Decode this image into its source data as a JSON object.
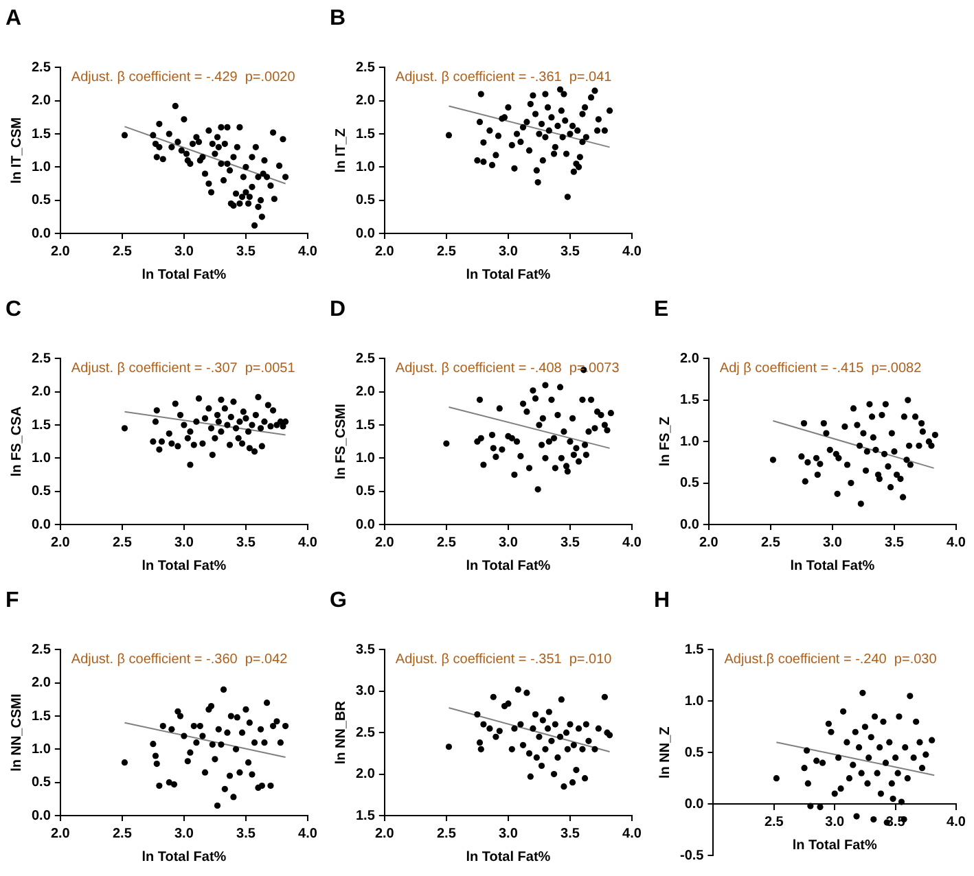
{
  "chart_data": [
    {
      "type": "scatter",
      "title": "A",
      "xlabel": "ln Total Fat%",
      "ylabel": "ln IT_CSM",
      "annotations": [
        "Adjust. β coefficient = -.429  p=.0020"
      ],
      "xlim": [
        2,
        4
      ],
      "xticks": [
        {
          "value": 2,
          "label": "2.0"
        },
        {
          "value": 2.5,
          "label": "2.5"
        },
        {
          "value": 3,
          "label": "3.0"
        },
        {
          "value": 3.5,
          "label": "3.5"
        },
        {
          "value": 4,
          "label": "4.0"
        }
      ],
      "ylim": [
        0,
        2.5
      ],
      "yticks": [
        {
          "value": 0,
          "label": "0.0"
        },
        0.5,
        {
          "value": 1,
          "label": "1.0"
        },
        1.5,
        {
          "value": 2,
          "label": "2.0"
        },
        2.5
      ],
      "grid": false,
      "legend": false,
      "marker": "circle",
      "series": [
        {
          "type": "scatter",
          "color": "#000000",
          "x": [
            2.52,
            2.75,
            2.77,
            2.78,
            2.8,
            2.8,
            2.83,
            2.88,
            2.9,
            2.93,
            2.95,
            2.98,
            3.0,
            3.02,
            3.03,
            3.05,
            3.07,
            3.1,
            3.12,
            3.13,
            3.15,
            3.17,
            3.2,
            3.2,
            3.22,
            3.23,
            3.25,
            3.27,
            3.28,
            3.3,
            3.3,
            3.32,
            3.33,
            3.35,
            3.35,
            3.37,
            3.38,
            3.4,
            3.4,
            3.42,
            3.43,
            3.45,
            3.45,
            3.47,
            3.48,
            3.5,
            3.5,
            3.52,
            3.53,
            3.55,
            3.55,
            3.57,
            3.58,
            3.6,
            3.6,
            3.62,
            3.63,
            3.64,
            3.65,
            3.67,
            3.7,
            3.72,
            3.73,
            3.77,
            3.8,
            3.82
          ],
          "values": [
            1.48,
            1.48,
            1.35,
            1.15,
            1.3,
            1.65,
            1.12,
            1.5,
            1.3,
            1.92,
            1.38,
            1.25,
            1.72,
            1.2,
            1.1,
            1.05,
            1.35,
            1.45,
            1.38,
            1.1,
            1.15,
            0.9,
            0.75,
            1.55,
            0.62,
            1.35,
            1.2,
            1.45,
            1.3,
            1.6,
            1.05,
            0.8,
            1.35,
            1.6,
            1.05,
            0.95,
            0.45,
            0.42,
            1.15,
            0.6,
            1.3,
            1.6,
            0.45,
            0.55,
            0.85,
            1.0,
            0.62,
            0.45,
            0.55,
            1.15,
            0.7,
            0.12,
            1.3,
            0.85,
            0.4,
            0.5,
            0.25,
            0.9,
            1.1,
            0.85,
            0.72,
            1.52,
            0.52,
            1.02,
            1.42,
            0.85
          ]
        },
        {
          "type": "line",
          "color": "#808080",
          "marker": "none",
          "x": [
            2.52,
            3.82
          ],
          "values": [
            1.61,
            0.75
          ]
        }
      ]
    },
    {
      "type": "scatter",
      "title": "B",
      "xlabel": "ln Total Fat%",
      "ylabel": "ln IT_Z",
      "annotations": [
        "Adjust. β coefficient = -.361  p=.041"
      ],
      "xlim": [
        2,
        4
      ],
      "xticks": [
        {
          "value": 2,
          "label": "2.0"
        },
        {
          "value": 2.5,
          "label": "2.5"
        },
        {
          "value": 3,
          "label": "3.0"
        },
        {
          "value": 3.5,
          "label": "3.5"
        },
        {
          "value": 4,
          "label": "4.0"
        }
      ],
      "ylim": [
        0,
        2.5
      ],
      "yticks": [
        {
          "value": 0,
          "label": "0.0"
        },
        0.5,
        {
          "value": 1,
          "label": "1.0"
        },
        1.5,
        {
          "value": 2,
          "label": "2.0"
        },
        2.5
      ],
      "grid": false,
      "legend": false,
      "marker": "circle",
      "series": [
        {
          "type": "scatter",
          "color": "#000000",
          "x": [
            2.52,
            2.75,
            2.77,
            2.78,
            2.8,
            2.8,
            2.85,
            2.87,
            2.9,
            2.92,
            2.95,
            2.97,
            3.0,
            3.03,
            3.05,
            3.07,
            3.1,
            3.12,
            3.15,
            3.17,
            3.18,
            3.2,
            3.22,
            3.23,
            3.24,
            3.25,
            3.27,
            3.28,
            3.3,
            3.3,
            3.32,
            3.33,
            3.35,
            3.37,
            3.38,
            3.4,
            3.42,
            3.43,
            3.44,
            3.45,
            3.46,
            3.47,
            3.48,
            3.5,
            3.52,
            3.53,
            3.55,
            3.56,
            3.57,
            3.58,
            3.6,
            3.6,
            3.62,
            3.63,
            3.67,
            3.7,
            3.72,
            3.73,
            3.78,
            3.82
          ],
          "values": [
            1.48,
            1.1,
            1.68,
            2.1,
            1.37,
            1.08,
            1.55,
            1.03,
            1.18,
            1.47,
            1.73,
            1.75,
            1.9,
            1.33,
            0.98,
            1.5,
            1.38,
            1.6,
            1.68,
            1.25,
            1.95,
            2.08,
            1.8,
            0.95,
            0.77,
            1.5,
            1.65,
            1.1,
            2.1,
            1.45,
            1.9,
            1.55,
            1.75,
            1.2,
            1.3,
            1.62,
            2.17,
            1.85,
            1.45,
            2.1,
            1.7,
            1.2,
            0.55,
            1.5,
            1.62,
            0.93,
            1.05,
            1.55,
            1.0,
            1.15,
            1.8,
            1.38,
            1.9,
            1.45,
            2.05,
            2.15,
            1.55,
            1.72,
            1.55,
            1.85
          ]
        },
        {
          "type": "line",
          "color": "#808080",
          "marker": "none",
          "x": [
            2.52,
            3.82
          ],
          "values": [
            1.92,
            1.3
          ]
        }
      ]
    },
    {
      "type": "scatter",
      "title": "C",
      "xlabel": "ln Total Fat%",
      "ylabel": "ln FS_CSA",
      "annotations": [
        "Adjust. β coefficient = -.307  p=.0051"
      ],
      "xlim": [
        2,
        4
      ],
      "xticks": [
        {
          "value": 2,
          "label": "2.0"
        },
        {
          "value": 2.5,
          "label": "2.5"
        },
        {
          "value": 3,
          "label": "3.0"
        },
        {
          "value": 3.5,
          "label": "3.5"
        },
        {
          "value": 4,
          "label": "4.0"
        }
      ],
      "ylim": [
        0,
        2.5
      ],
      "yticks": [
        {
          "value": 0,
          "label": "0.0"
        },
        0.5,
        {
          "value": 1,
          "label": "1.0"
        },
        1.5,
        {
          "value": 2,
          "label": "2.0"
        },
        2.5
      ],
      "grid": false,
      "legend": false,
      "marker": "circle",
      "series": [
        {
          "type": "scatter",
          "color": "#000000",
          "x": [
            2.52,
            2.75,
            2.77,
            2.78,
            2.8,
            2.82,
            2.88,
            2.9,
            2.93,
            2.95,
            2.97,
            3.0,
            3.03,
            3.05,
            3.05,
            3.08,
            3.1,
            3.12,
            3.15,
            3.17,
            3.2,
            3.22,
            3.23,
            3.25,
            3.27,
            3.28,
            3.3,
            3.3,
            3.33,
            3.35,
            3.37,
            3.38,
            3.4,
            3.42,
            3.44,
            3.45,
            3.47,
            3.48,
            3.5,
            3.52,
            3.53,
            3.55,
            3.57,
            3.58,
            3.6,
            3.62,
            3.63,
            3.65,
            3.68,
            3.7,
            3.72,
            3.75,
            3.78,
            3.8,
            3.82
          ],
          "values": [
            1.45,
            1.25,
            1.55,
            1.72,
            1.13,
            1.25,
            1.37,
            1.22,
            1.82,
            1.18,
            1.65,
            1.5,
            1.3,
            0.9,
            1.4,
            1.2,
            1.55,
            1.9,
            1.22,
            1.6,
            1.75,
            1.45,
            1.05,
            1.3,
            1.65,
            1.55,
            1.88,
            1.4,
            1.75,
            1.5,
            1.2,
            1.62,
            1.85,
            1.45,
            1.3,
            1.55,
            1.22,
            1.7,
            1.6,
            1.4,
            1.15,
            1.5,
            1.1,
            1.65,
            1.92,
            1.45,
            1.18,
            1.55,
            1.8,
            1.48,
            1.72,
            1.5,
            1.55,
            1.48,
            1.55
          ]
        },
        {
          "type": "line",
          "color": "#808080",
          "marker": "none",
          "x": [
            2.52,
            3.82
          ],
          "values": [
            1.7,
            1.35
          ]
        }
      ]
    },
    {
      "type": "scatter",
      "title": "D",
      "xlabel": "ln Total Fat%",
      "ylabel": "ln FS_CSMI",
      "annotations": [
        "Adjust. β coefficient = -.408  p=.0073"
      ],
      "xlim": [
        2,
        4
      ],
      "xticks": [
        {
          "value": 2,
          "label": "2.0"
        },
        {
          "value": 2.5,
          "label": "2.5"
        },
        {
          "value": 3,
          "label": "3.0"
        },
        {
          "value": 3.5,
          "label": "3.5"
        },
        {
          "value": 4,
          "label": "4.0"
        }
      ],
      "ylim": [
        0,
        2.5
      ],
      "yticks": [
        {
          "value": 0,
          "label": "0.0"
        },
        0.5,
        {
          "value": 1,
          "label": "1.0"
        },
        1.5,
        {
          "value": 2,
          "label": "2.0"
        },
        2.5
      ],
      "grid": false,
      "legend": false,
      "marker": "circle",
      "series": [
        {
          "type": "scatter",
          "color": "#000000",
          "x": [
            2.5,
            2.75,
            2.77,
            2.78,
            2.8,
            2.87,
            2.88,
            2.9,
            2.93,
            2.95,
            3.0,
            3.03,
            3.05,
            3.07,
            3.1,
            3.12,
            3.15,
            3.17,
            3.2,
            3.22,
            3.24,
            3.25,
            3.27,
            3.28,
            3.3,
            3.3,
            3.33,
            3.35,
            3.37,
            3.38,
            3.4,
            3.42,
            3.43,
            3.45,
            3.47,
            3.48,
            3.5,
            3.52,
            3.53,
            3.55,
            3.57,
            3.6,
            3.61,
            3.62,
            3.63,
            3.65,
            3.67,
            3.7,
            3.72,
            3.75,
            3.78,
            3.8,
            3.83
          ],
          "values": [
            1.22,
            1.25,
            1.88,
            1.3,
            0.9,
            1.35,
            1.15,
            1.02,
            1.75,
            1.13,
            1.33,
            1.3,
            0.75,
            1.25,
            1.03,
            1.82,
            1.7,
            0.85,
            2.02,
            1.9,
            0.53,
            1.5,
            1.2,
            1.6,
            2.1,
            1.0,
            1.25,
            1.88,
            1.3,
            0.85,
            1.65,
            2.07,
            1.0,
            1.4,
            0.88,
            0.8,
            1.25,
            1.6,
            1.05,
            1.15,
            0.95,
            1.88,
            2.33,
            1.2,
            1.05,
            1.4,
            1.88,
            1.45,
            1.7,
            1.65,
            1.5,
            1.42,
            1.68
          ]
        },
        {
          "type": "line",
          "color": "#808080",
          "marker": "none",
          "x": [
            2.52,
            3.82
          ],
          "values": [
            1.77,
            1.15
          ]
        }
      ]
    },
    {
      "type": "scatter",
      "title": "E",
      "xlabel": "ln Total Fat%",
      "ylabel": "ln FS_Z",
      "annotations": [
        "Adj β coefficient = -.415  p=.0082"
      ],
      "xlim": [
        2,
        4
      ],
      "xticks": [
        {
          "value": 2,
          "label": "2.0"
        },
        {
          "value": 2.5,
          "label": "2.5"
        },
        {
          "value": 3,
          "label": "3.0"
        },
        {
          "value": 3.5,
          "label": "3.5"
        },
        {
          "value": 4,
          "label": "4.0"
        }
      ],
      "ylim": [
        0,
        2
      ],
      "yticks": [
        {
          "value": 0,
          "label": "0.0"
        },
        0.5,
        {
          "value": 1,
          "label": "1.0"
        },
        1.5,
        {
          "value": 2,
          "label": "2.0"
        }
      ],
      "grid": false,
      "legend": false,
      "marker": "circle",
      "series": [
        {
          "type": "scatter",
          "color": "#000000",
          "x": [
            2.52,
            2.75,
            2.77,
            2.78,
            2.8,
            2.87,
            2.88,
            2.9,
            2.93,
            2.95,
            2.98,
            3.03,
            3.04,
            3.05,
            3.1,
            3.12,
            3.15,
            3.17,
            3.2,
            3.22,
            3.23,
            3.25,
            3.27,
            3.28,
            3.3,
            3.32,
            3.33,
            3.35,
            3.37,
            3.38,
            3.4,
            3.42,
            3.43,
            3.45,
            3.47,
            3.48,
            3.5,
            3.52,
            3.55,
            3.57,
            3.58,
            3.6,
            3.61,
            3.62,
            3.63,
            3.67,
            3.7,
            3.72,
            3.73,
            3.78,
            3.8,
            3.83
          ],
          "values": [
            0.78,
            0.82,
            1.22,
            0.52,
            0.75,
            0.8,
            0.6,
            0.73,
            1.22,
            1.1,
            0.9,
            0.85,
            0.37,
            0.8,
            1.18,
            0.72,
            0.5,
            1.4,
            1.2,
            0.95,
            0.25,
            1.1,
            0.65,
            0.88,
            1.45,
            1.3,
            1.05,
            0.9,
            0.6,
            0.55,
            1.32,
            0.85,
            1.45,
            0.7,
            0.45,
            1.1,
            0.88,
            0.6,
            0.55,
            0.33,
            1.3,
            0.78,
            1.5,
            0.95,
            0.72,
            1.3,
            0.95,
            1.22,
            1.12,
            1.0,
            0.95,
            1.08
          ]
        },
        {
          "type": "line",
          "color": "#808080",
          "marker": "none",
          "x": [
            2.52,
            3.82
          ],
          "values": [
            1.25,
            0.68
          ]
        }
      ]
    },
    {
      "type": "scatter",
      "title": "F",
      "xlabel": "ln Total Fat%",
      "ylabel": "ln NN_CSMI",
      "annotations": [
        "Adjust. β coefficient = -.360  p=.042"
      ],
      "xlim": [
        2,
        4
      ],
      "xticks": [
        {
          "value": 2,
          "label": "2.0"
        },
        {
          "value": 2.5,
          "label": "2.5"
        },
        {
          "value": 3,
          "label": "3.0"
        },
        {
          "value": 3.5,
          "label": "3.5"
        },
        {
          "value": 4,
          "label": "4.0"
        }
      ],
      "ylim": [
        0,
        2.5
      ],
      "yticks": [
        {
          "value": 0,
          "label": "0.0"
        },
        0.5,
        {
          "value": 1,
          "label": "1.0"
        },
        1.5,
        {
          "value": 2,
          "label": "2.0"
        },
        2.5
      ],
      "grid": false,
      "legend": false,
      "marker": "circle",
      "series": [
        {
          "type": "scatter",
          "color": "#000000",
          "x": [
            2.52,
            2.75,
            2.77,
            2.78,
            2.8,
            2.83,
            2.88,
            2.9,
            2.92,
            2.95,
            2.97,
            3.0,
            3.03,
            3.05,
            3.08,
            3.1,
            3.13,
            3.15,
            3.17,
            3.2,
            3.22,
            3.23,
            3.25,
            3.27,
            3.28,
            3.3,
            3.32,
            3.33,
            3.35,
            3.37,
            3.38,
            3.4,
            3.42,
            3.43,
            3.45,
            3.47,
            3.5,
            3.52,
            3.53,
            3.55,
            3.57,
            3.6,
            3.62,
            3.63,
            3.65,
            3.67,
            3.7,
            3.72,
            3.75,
            3.78,
            3.82
          ],
          "values": [
            0.8,
            1.08,
            0.9,
            0.78,
            0.45,
            1.35,
            0.5,
            1.3,
            0.47,
            1.57,
            1.5,
            1.2,
            0.82,
            0.95,
            1.35,
            1.1,
            1.35,
            1.2,
            0.65,
            1.6,
            1.65,
            1.07,
            0.85,
            0.15,
            1.3,
            1.07,
            1.9,
            0.4,
            1.25,
            0.6,
            1.5,
            0.28,
            1.0,
            1.48,
            0.65,
            1.25,
            1.6,
            0.8,
            1.4,
            0.62,
            1.1,
            0.42,
            1.3,
            0.45,
            1.1,
            1.7,
            0.45,
            1.35,
            1.42,
            1.1,
            1.35
          ]
        },
        {
          "type": "line",
          "color": "#808080",
          "marker": "none",
          "x": [
            2.52,
            3.82
          ],
          "values": [
            1.4,
            0.88
          ]
        }
      ]
    },
    {
      "type": "scatter",
      "title": "G",
      "xlabel": "ln Total Fat%",
      "ylabel": "ln NN_BR",
      "annotations": [
        "Adjust. β coefficient = -.351  p=.010"
      ],
      "xlim": [
        2,
        4
      ],
      "xticks": [
        {
          "value": 2,
          "label": "2.0"
        },
        {
          "value": 2.5,
          "label": "2.5"
        },
        {
          "value": 3,
          "label": "3.0"
        },
        {
          "value": 3.5,
          "label": "3.5"
        },
        {
          "value": 4,
          "label": "4.0"
        }
      ],
      "ylim": [
        1.5,
        3.5
      ],
      "yticks": [
        1.5,
        {
          "value": 2,
          "label": "2.0"
        },
        2.5,
        {
          "value": 3,
          "label": "3.0"
        },
        3.5
      ],
      "grid": false,
      "legend": false,
      "marker": "circle",
      "series": [
        {
          "type": "scatter",
          "color": "#000000",
          "x": [
            2.52,
            2.75,
            2.77,
            2.78,
            2.8,
            2.85,
            2.88,
            2.9,
            2.93,
            2.97,
            3.0,
            3.03,
            3.05,
            3.08,
            3.1,
            3.12,
            3.15,
            3.17,
            3.18,
            3.2,
            3.22,
            3.23,
            3.25,
            3.27,
            3.28,
            3.3,
            3.32,
            3.33,
            3.35,
            3.37,
            3.38,
            3.4,
            3.42,
            3.43,
            3.45,
            3.47,
            3.48,
            3.5,
            3.52,
            3.53,
            3.55,
            3.57,
            3.6,
            3.62,
            3.63,
            3.65,
            3.7,
            3.73,
            3.78,
            3.8,
            3.82
          ],
          "values": [
            2.33,
            2.72,
            2.38,
            2.3,
            2.6,
            2.55,
            2.93,
            2.45,
            2.52,
            2.82,
            2.85,
            2.3,
            2.55,
            3.02,
            2.6,
            2.35,
            2.98,
            2.25,
            1.97,
            2.55,
            2.72,
            2.2,
            2.45,
            2.1,
            2.65,
            2.3,
            2.55,
            2.75,
            2.4,
            2.0,
            2.6,
            2.2,
            2.45,
            2.9,
            1.85,
            2.5,
            2.3,
            2.6,
            1.9,
            2.35,
            2.05,
            2.55,
            2.3,
            1.95,
            2.6,
            2.4,
            2.3,
            2.55,
            2.93,
            2.5,
            2.47
          ]
        },
        {
          "type": "line",
          "color": "#808080",
          "marker": "none",
          "x": [
            2.52,
            3.82
          ],
          "values": [
            2.8,
            2.27
          ]
        }
      ]
    },
    {
      "type": "scatter",
      "title": "H",
      "xlabel": "ln Total Fat%",
      "ylabel": "ln NN_Z",
      "annotations": [
        "Adjust.β coefficient = -.240  p=.030"
      ],
      "xlim": [
        2,
        4
      ],
      "xticks": [
        {
          "value": 2,
          "label": null
        },
        {
          "value": 2.5,
          "label": "2.5"
        },
        {
          "value": 3,
          "label": "3.0"
        },
        {
          "value": 3.5,
          "label": "3.5"
        },
        {
          "value": 4,
          "label": "4.0"
        }
      ],
      "ylim": [
        -0.5,
        1.5
      ],
      "yticks": [
        -0.5,
        {
          "value": 0,
          "label": "0.0"
        },
        0.5,
        {
          "value": 1,
          "label": "1.0"
        },
        1.5
      ],
      "grid": false,
      "legend": false,
      "marker": "circle",
      "series": [
        {
          "type": "scatter",
          "color": "#000000",
          "x": [
            2.52,
            2.75,
            2.77,
            2.78,
            2.8,
            2.85,
            2.88,
            2.9,
            2.95,
            2.97,
            3.0,
            3.03,
            3.05,
            3.07,
            3.1,
            3.12,
            3.15,
            3.17,
            3.18,
            3.2,
            3.22,
            3.23,
            3.25,
            3.27,
            3.28,
            3.3,
            3.32,
            3.33,
            3.35,
            3.37,
            3.38,
            3.4,
            3.42,
            3.43,
            3.45,
            3.47,
            3.48,
            3.5,
            3.52,
            3.53,
            3.55,
            3.57,
            3.58,
            3.6,
            3.62,
            3.65,
            3.67,
            3.7,
            3.72,
            3.75,
            3.8
          ],
          "values": [
            0.25,
            0.35,
            0.52,
            0.2,
            -0.02,
            0.42,
            -0.03,
            0.4,
            0.78,
            0.7,
            0.1,
            0.45,
            0.15,
            0.9,
            0.6,
            0.25,
            0.38,
            0.7,
            -0.12,
            0.55,
            0.3,
            1.08,
            0.75,
            0.2,
            0.45,
            0.65,
            -0.15,
            0.85,
            0.3,
            0.55,
            0.1,
            0.8,
            0.4,
            -0.18,
            0.6,
            0.2,
            0.05,
            0.45,
            0.3,
            0.85,
            0.02,
            -0.15,
            0.55,
            0.25,
            1.05,
            0.45,
            0.8,
            0.6,
            0.35,
            0.48,
            0.62
          ]
        },
        {
          "type": "line",
          "color": "#808080",
          "marker": "none",
          "x": [
            2.52,
            3.82
          ],
          "values": [
            0.6,
            0.28
          ]
        }
      ]
    }
  ]
}
